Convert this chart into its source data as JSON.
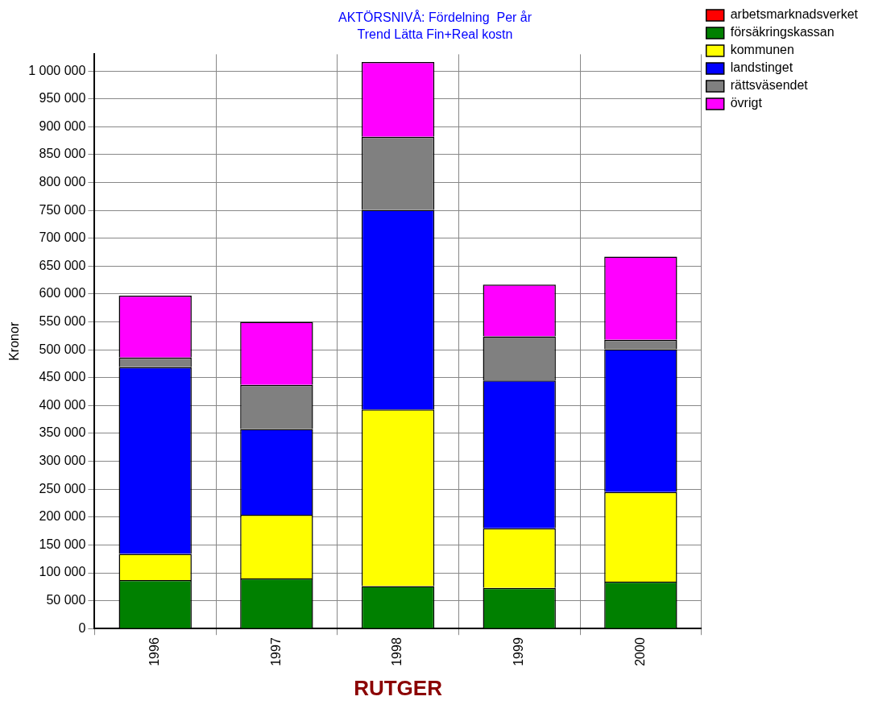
{
  "chart_data": {
    "type": "bar",
    "title": "AKTÖRSNIVÅ: Fördelning  Per år",
    "subtitle": "Trend Lätta Fin+Real kostn",
    "xlabel": "RUTGER",
    "ylabel": "Kronor",
    "categories": [
      "1996",
      "1997",
      "1998",
      "1999",
      "2000"
    ],
    "stacked": true,
    "grid": true,
    "legend": "top right",
    "ylim": [
      0,
      1030000
    ],
    "yticks": [
      {
        "value": 0,
        "label": "0"
      },
      {
        "value": 50000,
        "label": "50 000"
      },
      {
        "value": 100000,
        "label": "100 000"
      },
      {
        "value": 150000,
        "label": "150 000"
      },
      {
        "value": 200000,
        "label": "200 000"
      },
      {
        "value": 250000,
        "label": "250 000"
      },
      {
        "value": 300000,
        "label": "300 000"
      },
      {
        "value": 350000,
        "label": "350 000"
      },
      {
        "value": 400000,
        "label": "400 000"
      },
      {
        "value": 450000,
        "label": "450 000"
      },
      {
        "value": 500000,
        "label": "500 000"
      },
      {
        "value": 550000,
        "label": "550 000"
      },
      {
        "value": 600000,
        "label": "600 000"
      },
      {
        "value": 650000,
        "label": "650 000"
      },
      {
        "value": 700000,
        "label": "700 000"
      },
      {
        "value": 750000,
        "label": "750 000"
      },
      {
        "value": 800000,
        "label": "800 000"
      },
      {
        "value": 850000,
        "label": "850 000"
      },
      {
        "value": 900000,
        "label": "900 000"
      },
      {
        "value": 950000,
        "label": "950 000"
      },
      {
        "value": 1000000,
        "label": "1 000 000"
      }
    ],
    "series": [
      {
        "name": "arbetsmarknadsverket",
        "color": "#ff0000",
        "values": [
          0,
          0,
          0,
          0,
          0
        ]
      },
      {
        "name": "försäkringskassan",
        "color": "#008000",
        "values": [
          87000,
          90000,
          76000,
          73000,
          84000
        ]
      },
      {
        "name": "kommunen",
        "color": "#ffff00",
        "values": [
          47000,
          114000,
          317000,
          107000,
          161000
        ]
      },
      {
        "name": "landstinget",
        "color": "#0000ff",
        "values": [
          335000,
          154000,
          358000,
          265000,
          256000
        ]
      },
      {
        "name": "rättsväsendet",
        "color": "#808080",
        "values": [
          17000,
          79000,
          131000,
          79000,
          17000
        ]
      },
      {
        "name": "övrigt",
        "color": "#ff00ff",
        "values": [
          111000,
          113000,
          134000,
          93000,
          149000
        ]
      }
    ]
  }
}
